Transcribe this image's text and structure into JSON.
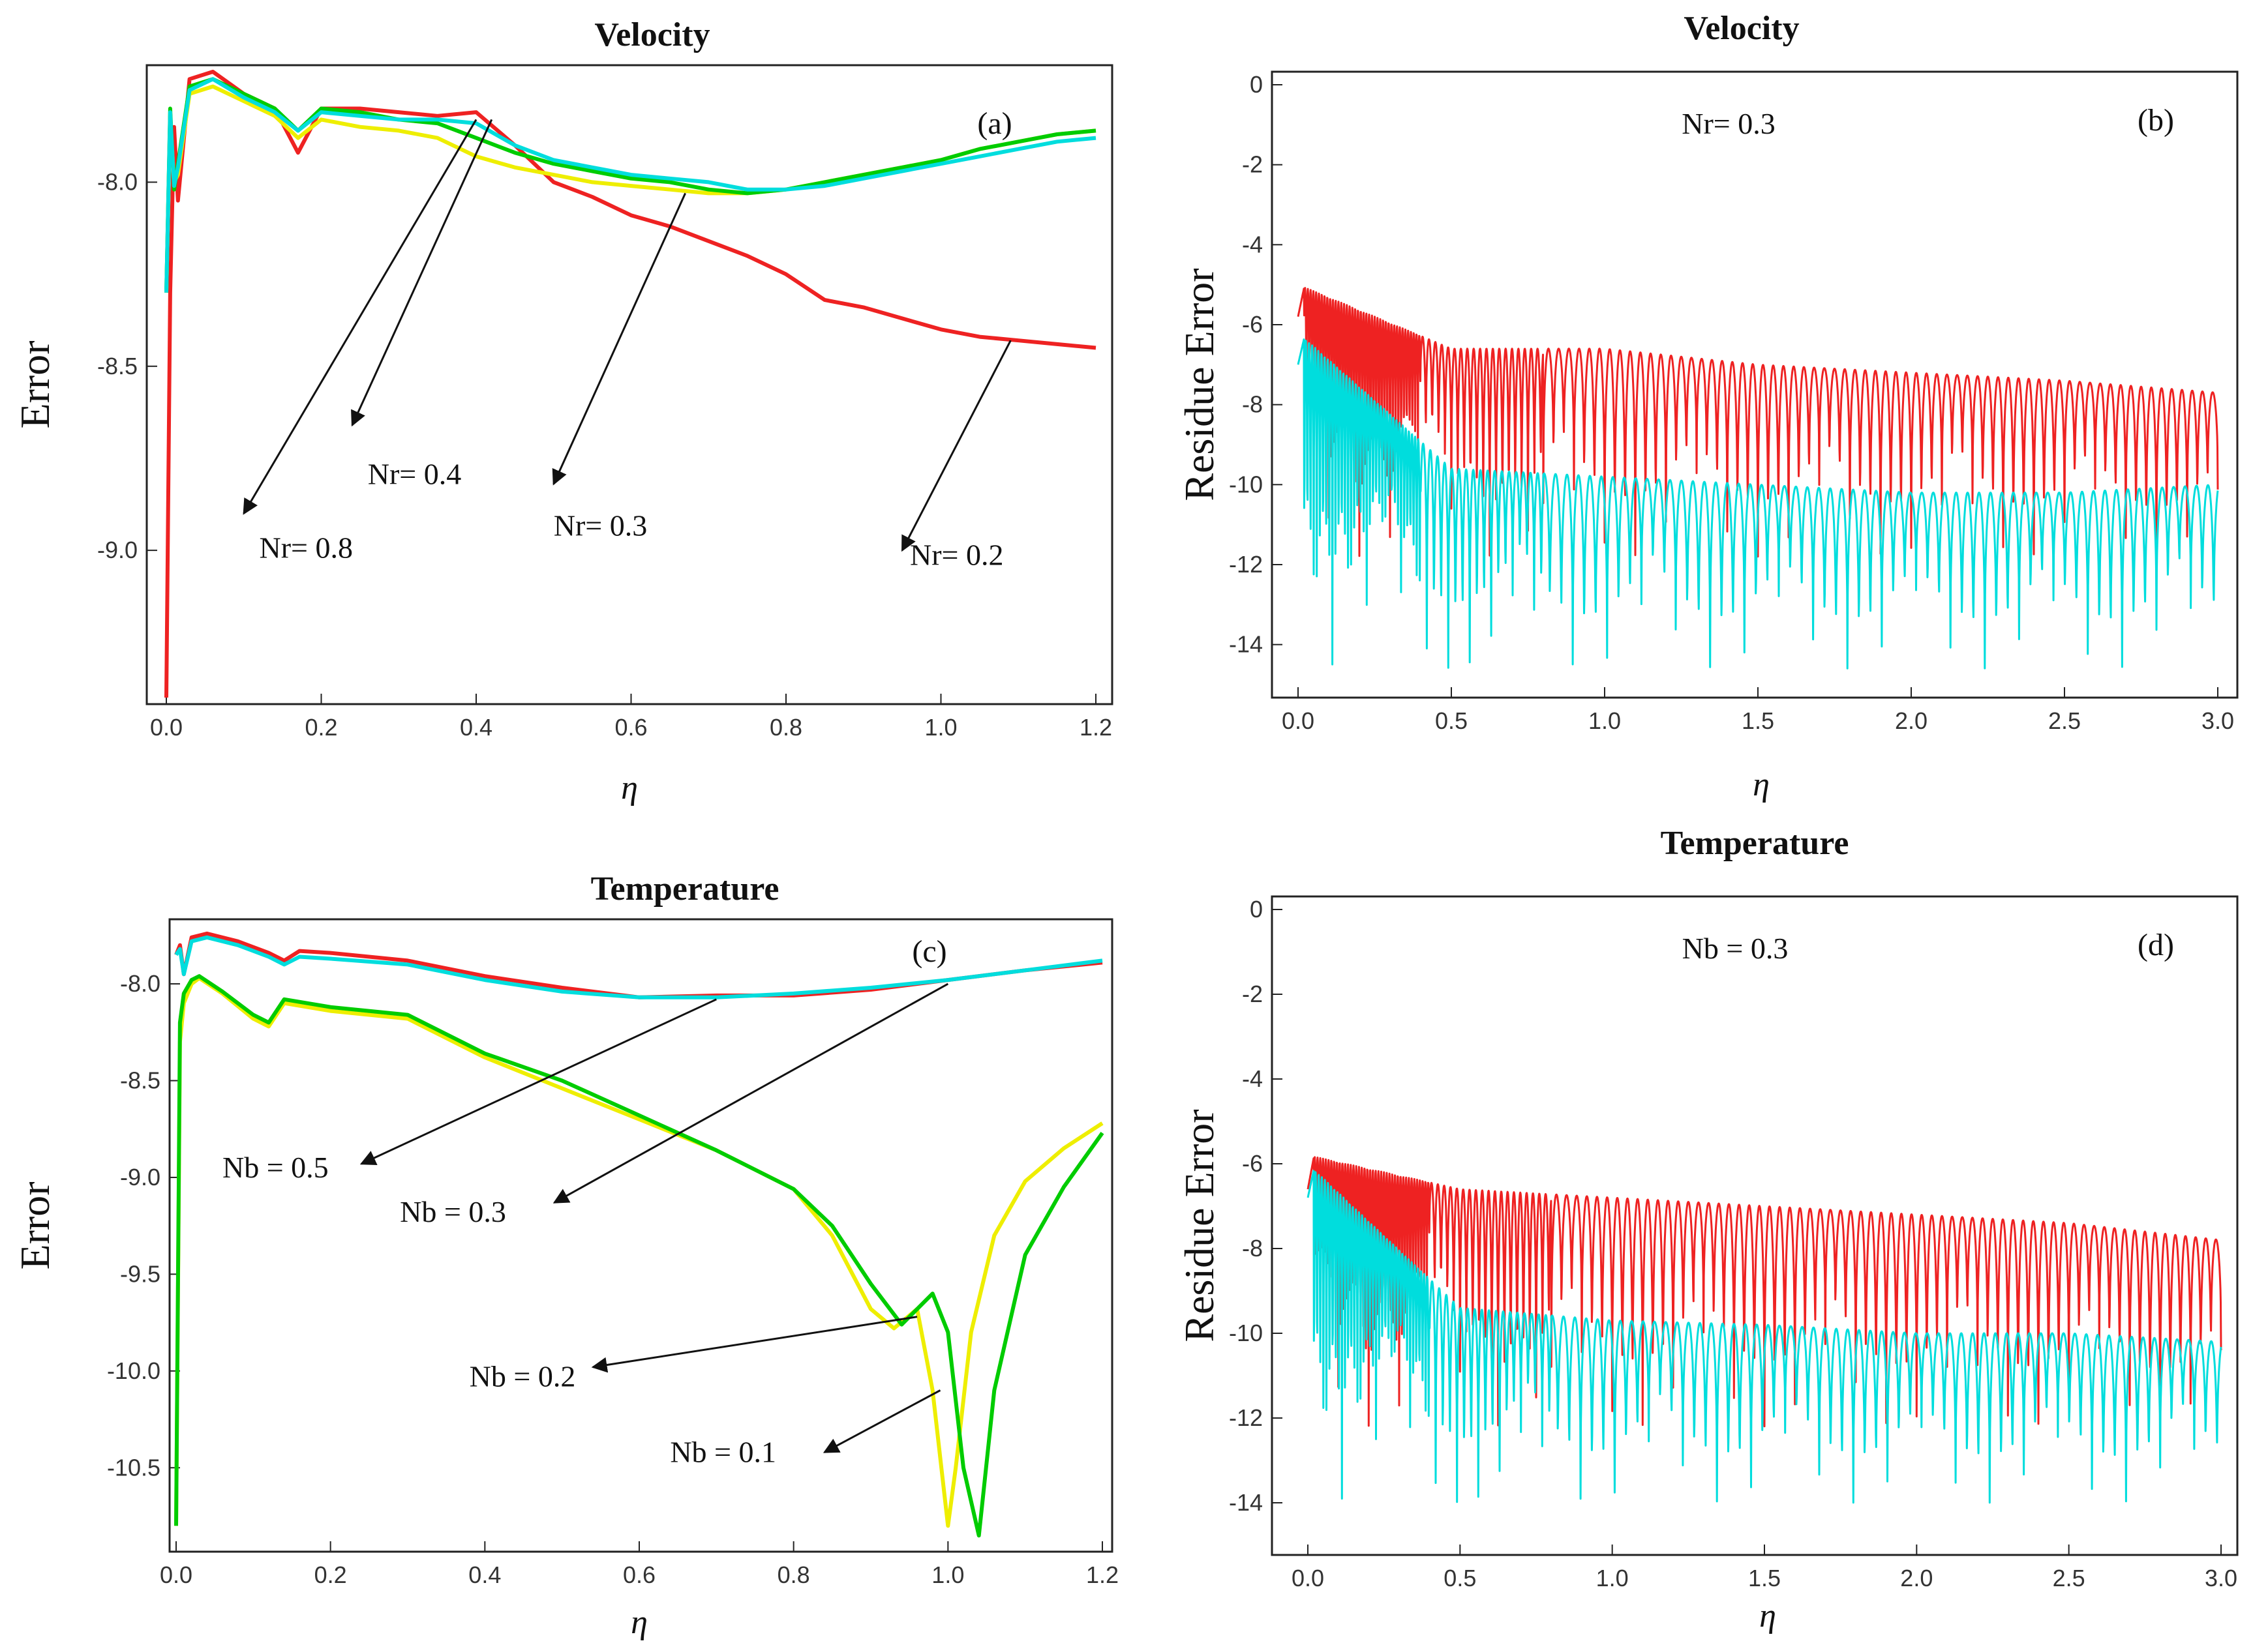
{
  "chart_data": [
    {
      "panel": "(a)",
      "type": "line",
      "title": "Velocity",
      "xlabel": "η",
      "ylabel": "Error",
      "xlim": [
        0,
        1.2
      ],
      "ylim": [
        -9.4,
        -7.7
      ],
      "xticks": [
        "0.0",
        "0.2",
        "0.4",
        "0.6",
        "0.8",
        "1.0",
        "1.2"
      ],
      "yticks": [
        "-8.0",
        "-8.5",
        "-9.0"
      ],
      "grid": false,
      "legend": "none",
      "colors": [
        "#ee2222",
        "#eeee00",
        "#00cc00",
        "#00dddd"
      ],
      "series": [
        {
          "color": "#ee2222",
          "x": [
            0.0,
            0.005,
            0.01,
            0.015,
            0.03,
            0.06,
            0.1,
            0.14,
            0.17,
            0.2,
            0.25,
            0.3,
            0.35,
            0.4,
            0.45,
            0.5,
            0.55,
            0.6,
            0.65,
            0.7,
            0.75,
            0.8,
            0.85,
            0.9,
            0.95,
            1.0,
            1.05,
            1.1,
            1.15,
            1.2
          ],
          "y": [
            -9.4,
            -8.3,
            -7.85,
            -8.05,
            -7.72,
            -7.7,
            -7.76,
            -7.8,
            -7.92,
            -7.8,
            -7.8,
            -7.81,
            -7.82,
            -7.81,
            -7.9,
            -8.0,
            -8.04,
            -8.09,
            -8.12,
            -8.16,
            -8.2,
            -8.25,
            -8.32,
            -8.34,
            -8.37,
            -8.4,
            -8.42,
            -8.43,
            -8.44,
            -8.45
          ]
        },
        {
          "color": "#eeee00",
          "x": [
            0.0,
            0.005,
            0.01,
            0.015,
            0.03,
            0.06,
            0.1,
            0.14,
            0.17,
            0.2,
            0.25,
            0.3,
            0.35,
            0.4,
            0.45,
            0.5,
            0.55,
            0.6,
            0.65,
            0.7,
            0.75,
            0.8,
            0.85,
            0.9,
            0.95,
            1.0,
            1.05,
            1.1,
            1.15,
            1.2
          ],
          "y": [
            -8.3,
            -7.82,
            -8.0,
            -7.98,
            -7.76,
            -7.74,
            -7.78,
            -7.82,
            -7.88,
            -7.83,
            -7.85,
            -7.86,
            -7.88,
            -7.93,
            -7.96,
            -7.98,
            -8.0,
            -8.01,
            -8.02,
            -8.03,
            -8.03,
            -8.02,
            -8.0,
            -7.98,
            -7.96,
            -7.94,
            -7.91,
            -7.89,
            -7.87,
            -7.86
          ]
        },
        {
          "color": "#00cc00",
          "x": [
            0.0,
            0.005,
            0.01,
            0.015,
            0.03,
            0.06,
            0.1,
            0.14,
            0.17,
            0.2,
            0.25,
            0.3,
            0.35,
            0.4,
            0.45,
            0.5,
            0.55,
            0.6,
            0.65,
            0.7,
            0.75,
            0.8,
            0.85,
            0.9,
            0.95,
            1.0,
            1.05,
            1.1,
            1.15,
            1.2
          ],
          "y": [
            -8.3,
            -7.8,
            -8.02,
            -7.95,
            -7.74,
            -7.72,
            -7.76,
            -7.8,
            -7.86,
            -7.8,
            -7.81,
            -7.83,
            -7.84,
            -7.88,
            -7.92,
            -7.95,
            -7.97,
            -7.99,
            -8.0,
            -8.02,
            -8.03,
            -8.02,
            -8.0,
            -7.98,
            -7.96,
            -7.94,
            -7.91,
            -7.89,
            -7.87,
            -7.86
          ]
        },
        {
          "color": "#00dddd",
          "x": [
            0.0,
            0.005,
            0.01,
            0.015,
            0.03,
            0.06,
            0.1,
            0.14,
            0.17,
            0.2,
            0.25,
            0.3,
            0.35,
            0.4,
            0.45,
            0.5,
            0.55,
            0.6,
            0.65,
            0.7,
            0.75,
            0.8,
            0.85,
            0.9,
            0.95,
            1.0,
            1.05,
            1.1,
            1.15,
            1.2
          ],
          "y": [
            -8.3,
            -7.81,
            -8.01,
            -7.96,
            -7.75,
            -7.72,
            -7.77,
            -7.81,
            -7.86,
            -7.81,
            -7.82,
            -7.83,
            -7.83,
            -7.84,
            -7.9,
            -7.94,
            -7.96,
            -7.98,
            -7.99,
            -8.0,
            -8.02,
            -8.02,
            -8.01,
            -7.99,
            -7.97,
            -7.95,
            -7.93,
            -7.91,
            -7.89,
            -7.88
          ]
        }
      ],
      "annotations": [
        {
          "text": "Nr= 0.8",
          "from": [
            0.4,
            -7.83
          ],
          "to": [
            0.1,
            -8.9
          ],
          "label_at": [
            0.12,
            -9.02
          ]
        },
        {
          "text": "Nr= 0.4",
          "from": [
            0.42,
            -7.83
          ],
          "to": [
            0.24,
            -8.66
          ],
          "label_at": [
            0.26,
            -8.82
          ]
        },
        {
          "text": "Nr= 0.3",
          "from": [
            0.67,
            -8.03
          ],
          "to": [
            0.5,
            -8.82
          ],
          "label_at": [
            0.5,
            -8.96
          ]
        },
        {
          "text": "Nr= 0.2",
          "from": [
            1.09,
            -8.43
          ],
          "to": [
            0.95,
            -9.0
          ],
          "label_at": [
            0.96,
            -9.04
          ]
        }
      ]
    },
    {
      "panel": "(b)",
      "type": "line",
      "title": "Velocity",
      "subtitle": "Nr= 0.3",
      "xlabel": "η",
      "ylabel": "Residue Error",
      "xlim": [
        0,
        3.0
      ],
      "ylim": [
        -15,
        0
      ],
      "xticks": [
        "0.0",
        "0.5",
        "1.0",
        "1.5",
        "2.0",
        "2.5",
        "3.0"
      ],
      "yticks": [
        "0",
        "-2",
        "-4",
        "-6",
        "-8",
        "-10",
        "-12",
        "-14"
      ],
      "grid": false,
      "legend": "none",
      "series": [
        {
          "color": "#ee2222",
          "envelope_x": [
            0.0,
            0.5,
            1.0,
            1.5,
            2.0,
            2.5,
            3.0
          ],
          "envelope_y": [
            -5.0,
            -6.6,
            -6.6,
            -7.0,
            -7.2,
            -7.4,
            -7.7
          ],
          "dip_min": -11.8
        },
        {
          "color": "#00dddd",
          "envelope_x": [
            0.0,
            0.5,
            1.0,
            1.5,
            2.0,
            2.5,
            3.0
          ],
          "envelope_y": [
            -6.2,
            -9.6,
            -9.8,
            -10.0,
            -10.2,
            -10.2,
            -10.0
          ],
          "dip_min": -14.6
        }
      ]
    },
    {
      "panel": "(c)",
      "type": "line",
      "title": "Temperature",
      "xlabel": "η",
      "ylabel": "Error",
      "xlim": [
        0,
        1.2
      ],
      "ylim": [
        -10.9,
        -7.7
      ],
      "xticks": [
        "0.0",
        "0.2",
        "0.4",
        "0.6",
        "0.8",
        "1.0",
        "1.2"
      ],
      "yticks": [
        "-8.0",
        "-8.5",
        "-9.0",
        "-9.5",
        "-10.0",
        "-10.5"
      ],
      "grid": false,
      "legend": "none",
      "colors": [
        "#ee2222",
        "#00dddd",
        "#eeee00",
        "#00cc00"
      ],
      "series": [
        {
          "color": "#ee2222",
          "x": [
            0.0,
            0.005,
            0.01,
            0.02,
            0.04,
            0.08,
            0.12,
            0.14,
            0.16,
            0.2,
            0.3,
            0.4,
            0.5,
            0.6,
            0.7,
            0.8,
            0.9,
            1.0,
            1.1,
            1.2
          ],
          "y": [
            -7.85,
            -7.8,
            -7.95,
            -7.76,
            -7.74,
            -7.78,
            -7.84,
            -7.88,
            -7.83,
            -7.84,
            -7.88,
            -7.96,
            -8.02,
            -8.07,
            -8.06,
            -8.06,
            -8.03,
            -7.98,
            -7.93,
            -7.89
          ]
        },
        {
          "color": "#00dddd",
          "x": [
            0.0,
            0.005,
            0.01,
            0.02,
            0.04,
            0.08,
            0.12,
            0.14,
            0.16,
            0.2,
            0.3,
            0.4,
            0.5,
            0.6,
            0.7,
            0.8,
            0.9,
            1.0,
            1.1,
            1.2
          ],
          "y": [
            -7.85,
            -7.82,
            -7.95,
            -7.78,
            -7.76,
            -7.8,
            -7.86,
            -7.9,
            -7.86,
            -7.87,
            -7.9,
            -7.98,
            -8.04,
            -8.07,
            -8.07,
            -8.05,
            -8.02,
            -7.98,
            -7.93,
            -7.88
          ]
        },
        {
          "color": "#eeee00",
          "x": [
            0.0,
            0.005,
            0.01,
            0.02,
            0.03,
            0.06,
            0.1,
            0.12,
            0.14,
            0.2,
            0.3,
            0.4,
            0.5,
            0.6,
            0.7,
            0.8,
            0.85,
            0.9,
            0.93,
            0.96,
            0.98,
            1.0,
            1.01,
            1.03,
            1.06,
            1.1,
            1.15,
            1.2
          ],
          "y": [
            -10.8,
            -8.3,
            -8.1,
            -8.0,
            -7.97,
            -8.05,
            -8.18,
            -8.22,
            -8.1,
            -8.14,
            -8.18,
            -8.38,
            -8.54,
            -8.7,
            -8.86,
            -9.06,
            -9.3,
            -9.68,
            -9.78,
            -9.68,
            -10.1,
            -10.8,
            -10.5,
            -9.8,
            -9.3,
            -9.02,
            -8.85,
            -8.72
          ]
        },
        {
          "color": "#00cc00",
          "x": [
            0.0,
            0.005,
            0.01,
            0.02,
            0.03,
            0.06,
            0.1,
            0.12,
            0.14,
            0.2,
            0.3,
            0.4,
            0.5,
            0.6,
            0.7,
            0.8,
            0.85,
            0.9,
            0.94,
            0.98,
            1.0,
            1.02,
            1.04,
            1.06,
            1.1,
            1.15,
            1.2
          ],
          "y": [
            -10.8,
            -8.2,
            -8.05,
            -7.98,
            -7.96,
            -8.04,
            -8.16,
            -8.2,
            -8.08,
            -8.12,
            -8.16,
            -8.36,
            -8.5,
            -8.68,
            -8.86,
            -9.06,
            -9.25,
            -9.55,
            -9.76,
            -9.6,
            -9.8,
            -10.5,
            -10.85,
            -10.1,
            -9.4,
            -9.05,
            -8.77
          ]
        }
      ],
      "annotations": [
        {
          "text": "Nb = 0.5",
          "from": [
            0.7,
            -8.08
          ],
          "to": [
            0.24,
            -8.93
          ],
          "label_at": [
            0.06,
            -9.0
          ]
        },
        {
          "text": "Nb = 0.3",
          "from": [
            1.0,
            -8.0
          ],
          "to": [
            0.49,
            -9.13
          ],
          "label_at": [
            0.29,
            -9.23
          ]
        },
        {
          "text": "Nb = 0.2",
          "from": [
            0.96,
            -9.72
          ],
          "to": [
            0.54,
            -9.98
          ],
          "label_at": [
            0.38,
            -10.08
          ]
        },
        {
          "text": "Nb = 0.1",
          "from": [
            0.99,
            -10.1
          ],
          "to": [
            0.84,
            -10.42
          ],
          "label_at": [
            0.64,
            -10.47
          ]
        }
      ]
    },
    {
      "panel": "(d)",
      "type": "line",
      "title": "Temperature",
      "subtitle": "Nb = 0.3",
      "xlabel": "η",
      "ylabel": "Residue Error",
      "xlim": [
        0,
        3.0
      ],
      "ylim": [
        -15,
        0
      ],
      "xticks": [
        "0.0",
        "0.5",
        "1.0",
        "1.5",
        "2.0",
        "2.5",
        "3.0"
      ],
      "yticks": [
        "0",
        "-2",
        "-4",
        "-6",
        "-8",
        "-10",
        "-12",
        "-14"
      ],
      "grid": false,
      "legend": "none",
      "series": [
        {
          "color": "#ee2222",
          "envelope_x": [
            0.0,
            0.5,
            1.0,
            1.5,
            2.0,
            2.5,
            3.0
          ],
          "envelope_y": [
            -5.8,
            -6.6,
            -6.8,
            -7.0,
            -7.2,
            -7.4,
            -7.8
          ],
          "dip_min": -12.2
        },
        {
          "color": "#00dddd",
          "envelope_x": [
            0.0,
            0.5,
            1.0,
            1.5,
            2.0,
            2.5,
            3.0
          ],
          "envelope_y": [
            -6.0,
            -9.4,
            -9.7,
            -9.8,
            -10.0,
            -10.0,
            -10.2
          ],
          "dip_min": -14.0
        }
      ]
    }
  ]
}
